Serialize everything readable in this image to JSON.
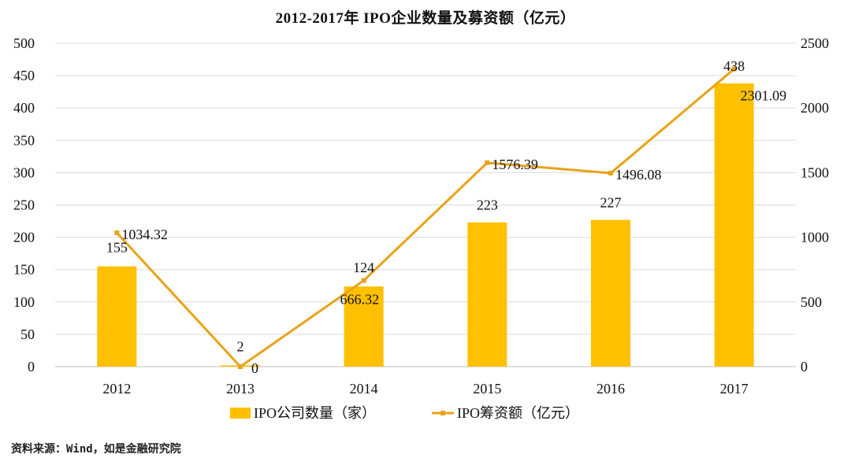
{
  "chart_data": {
    "type": "bar",
    "title": "2012-2017年   IPO企业数量及募资额（亿元）",
    "categories": [
      "2012",
      "2013",
      "2014",
      "2015",
      "2016",
      "2017"
    ],
    "series": [
      {
        "name": "IPO公司数量（家）",
        "type": "bar",
        "axis": "left",
        "color": "#FFC000",
        "values": [
          155,
          2,
          124,
          223,
          227,
          438
        ],
        "labels": [
          "155",
          "2",
          "124",
          "223",
          "227",
          "438"
        ]
      },
      {
        "name": "IPO筹资额（亿元）",
        "type": "line",
        "axis": "right",
        "color": "#E8A317",
        "values": [
          1034.32,
          0,
          666.32,
          1576.39,
          1496.08,
          2301.09
        ],
        "labels": [
          "1034.32",
          "0",
          "666.32",
          "1576.39",
          "1496.08",
          "2301.09"
        ]
      }
    ],
    "y_left": {
      "min": 0,
      "max": 500,
      "ticks": [
        "0",
        "50",
        "100",
        "150",
        "200",
        "250",
        "300",
        "350",
        "400",
        "450",
        "500"
      ]
    },
    "y_right": {
      "min": 0,
      "max": 2500,
      "ticks": [
        "0",
        "500",
        "1000",
        "1500",
        "2000",
        "2500"
      ]
    },
    "grid": true,
    "legend": "bottom",
    "source": "资料来源：Wind，如是金融研究院"
  }
}
